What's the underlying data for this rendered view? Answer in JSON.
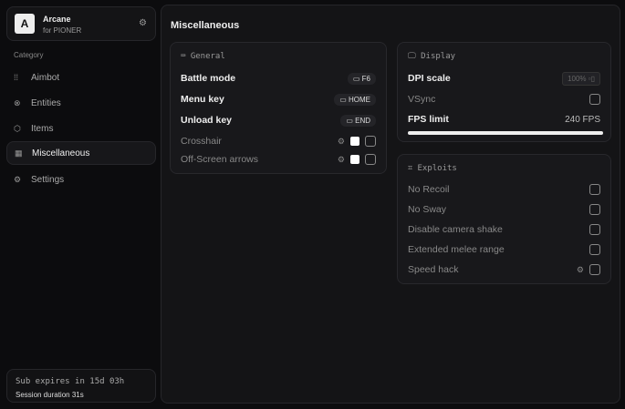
{
  "brand": {
    "logo": "A",
    "name": "Arcane",
    "subtitle": "for PIONER",
    "icon": "gear-icon"
  },
  "sidebar": {
    "category_label": "Category",
    "items": [
      {
        "label": "Aimbot",
        "icon": "crosshair-dots-icon",
        "active": false
      },
      {
        "label": "Entities",
        "icon": "entities-icon",
        "active": false
      },
      {
        "label": "Items",
        "icon": "cube-icon",
        "active": false
      },
      {
        "label": "Miscellaneous",
        "icon": "grid-icon",
        "active": true
      },
      {
        "label": "Settings",
        "icon": "gear-icon",
        "active": false
      }
    ]
  },
  "subscription": {
    "expires": "Sub expires in 15d 03h",
    "session": "Session duration 31s"
  },
  "main": {
    "title": "Miscellaneous",
    "general": {
      "title": "General",
      "rows": [
        {
          "label": "Battle mode",
          "key": "F6"
        },
        {
          "label": "Menu key",
          "key": "HOME"
        },
        {
          "label": "Unload key",
          "key": "END"
        }
      ],
      "toggles": [
        {
          "label": "Crosshair",
          "checked": false
        },
        {
          "label": "Off-Screen arrows",
          "checked": false
        }
      ]
    },
    "display": {
      "title": "Display",
      "dpi_label": "DPI scale",
      "dpi_value": "100%",
      "vsync_label": "VSync",
      "vsync": false,
      "fps_label": "FPS limit",
      "fps_value": "240 FPS",
      "fps_fill": 1.0
    },
    "exploits": {
      "title": "Exploits",
      "items": [
        {
          "label": "No Recoil",
          "checked": false
        },
        {
          "label": "No Sway",
          "checked": false
        },
        {
          "label": "Disable camera shake",
          "checked": false
        },
        {
          "label": "Extended melee range",
          "checked": false
        },
        {
          "label": "Speed hack",
          "checked": false,
          "has_settings": true
        }
      ]
    }
  }
}
